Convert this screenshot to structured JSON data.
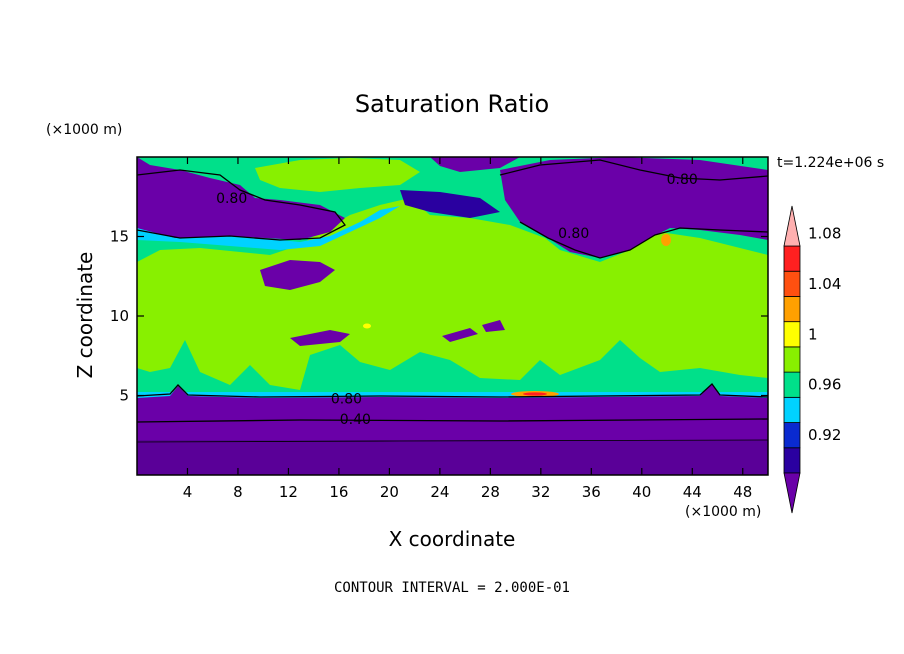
{
  "chart_data": {
    "type": "heatmap",
    "title": "Saturation Ratio",
    "xlabel": "X coordinate",
    "ylabel": "Z coordinate",
    "x_unit_label": "(×1000 m)",
    "y_unit_label": "(×1000 m)",
    "xlim": [
      0,
      50
    ],
    "ylim": [
      0,
      20
    ],
    "x_ticks": [
      4,
      8,
      12,
      16,
      20,
      24,
      28,
      32,
      36,
      40,
      44,
      48
    ],
    "y_ticks": [
      5,
      10,
      15
    ],
    "time_label": "t=1.224e+06 s",
    "footer": "CONTOUR INTERVAL = 2.000E-01",
    "colorbar": {
      "levels": [
        0.92,
        0.96,
        1,
        1.04,
        1.08
      ],
      "tick_labels": [
        "0.92",
        "0.96",
        "1",
        "1.04",
        "1.08"
      ],
      "colors": [
        "#6a00a8",
        "#2a00a0",
        "#0a2ad0",
        "#00d2ff",
        "#00e08a",
        "#88f000",
        "#ffff00",
        "#ffa000",
        "#ff5010",
        "#ff2020",
        "#ffb0b0"
      ]
    },
    "contour_labels": [
      {
        "text": "0.80",
        "x": 7.5,
        "y": 17.1
      },
      {
        "text": "0.80",
        "x": 43.2,
        "y": 18.3
      },
      {
        "text": "0.80",
        "x": 34.6,
        "y": 14.9
      },
      {
        "text": "0.80",
        "x": 16.6,
        "y": 4.5
      },
      {
        "text": "0.40",
        "x": 17.3,
        "y": 3.2
      }
    ],
    "regions": [
      {
        "name": "lower-dry-layer",
        "z_range": [
          0,
          5
        ],
        "value": 0.6,
        "color": "#6a00a8"
      },
      {
        "name": "near-saturated-mid-layer",
        "z_range": [
          5,
          15
        ],
        "value": 1.0,
        "color": "#88f000"
      },
      {
        "name": "upper-dry-patches",
        "z_range": [
          15,
          20
        ],
        "value": 0.8,
        "color": "#6a00a8"
      },
      {
        "name": "supersaturated-spot",
        "x": 31,
        "z": 5.1,
        "value": 1.06,
        "color": "#ffa000"
      }
    ]
  }
}
